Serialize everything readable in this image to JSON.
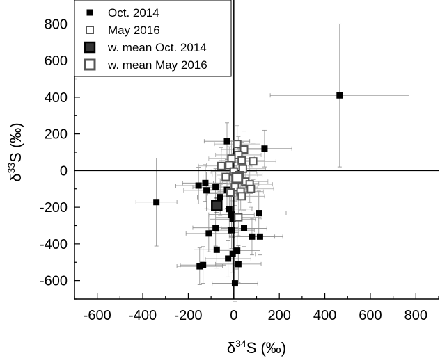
{
  "chart_data": {
    "type": "scatter",
    "title": "",
    "xlabel_main": "δ",
    "xlabel_sup": "34",
    "xlabel_rest": "S (‰)",
    "ylabel_main": "δ",
    "ylabel_sup": "33",
    "ylabel_rest": "S (‰)",
    "xlim": [
      -700,
      900
    ],
    "ylim": [
      -700,
      900
    ],
    "xticks": [
      -600,
      -400,
      -200,
      0,
      200,
      400,
      600,
      800
    ],
    "yticks": [
      -600,
      -400,
      -200,
      0,
      200,
      400,
      600,
      800
    ],
    "grid": false,
    "legend_position": "top-left",
    "legend": [
      {
        "label": "Oct. 2014",
        "style": "small-filled"
      },
      {
        "label": "May 2016",
        "style": "small-open"
      },
      {
        "label": "w. mean Oct. 2014",
        "style": "large-filled"
      },
      {
        "label": "w. mean May 2016",
        "style": "large-open"
      }
    ],
    "series": [
      {
        "name": "Oct. 2014",
        "points": [
          {
            "x": 465,
            "y": 410,
            "xerr": 305,
            "yerr": 390
          },
          {
            "x": 135,
            "y": 120,
            "xerr": 120,
            "yerr": 100
          },
          {
            "x": -340,
            "y": -172,
            "xerr": 90,
            "yerr": 240
          },
          {
            "x": -30,
            "y": 160,
            "xerr": 100,
            "yerr": 100
          },
          {
            "x": 110,
            "y": -232,
            "xerr": 120,
            "yerr": 120
          },
          {
            "x": -155,
            "y": -82,
            "xerr": 100,
            "yerr": 100
          },
          {
            "x": -125,
            "y": -68,
            "xerr": 100,
            "yerr": 100
          },
          {
            "x": -120,
            "y": -108,
            "xerr": 100,
            "yerr": 100
          },
          {
            "x": -80,
            "y": -90,
            "xerr": 100,
            "yerr": 100
          },
          {
            "x": -60,
            "y": -145,
            "xerr": 100,
            "yerr": 100
          },
          {
            "x": -30,
            "y": -105,
            "xerr": 100,
            "yerr": 100
          },
          {
            "x": -15,
            "y": -125,
            "xerr": 100,
            "yerr": 100
          },
          {
            "x": 5,
            "y": -20,
            "xerr": 100,
            "yerr": 100
          },
          {
            "x": 10,
            "y": -70,
            "xerr": 100,
            "yerr": 100
          },
          {
            "x": -20,
            "y": -210,
            "xerr": 100,
            "yerr": 100
          },
          {
            "x": -10,
            "y": -240,
            "xerr": 100,
            "yerr": 100
          },
          {
            "x": -5,
            "y": -265,
            "xerr": 100,
            "yerr": 100
          },
          {
            "x": -80,
            "y": -312,
            "xerr": 100,
            "yerr": 100
          },
          {
            "x": -10,
            "y": -325,
            "xerr": 100,
            "yerr": 100
          },
          {
            "x": 45,
            "y": -315,
            "xerr": 100,
            "yerr": 100
          },
          {
            "x": -110,
            "y": -343,
            "xerr": 100,
            "yerr": 100
          },
          {
            "x": 80,
            "y": -360,
            "xerr": 100,
            "yerr": 100
          },
          {
            "x": 115,
            "y": -360,
            "xerr": 100,
            "yerr": 100
          },
          {
            "x": -75,
            "y": -432,
            "xerr": 100,
            "yerr": 100
          },
          {
            "x": 15,
            "y": -437,
            "xerr": 100,
            "yerr": 100
          },
          {
            "x": -5,
            "y": -455,
            "xerr": 100,
            "yerr": 100
          },
          {
            "x": -25,
            "y": -480,
            "xerr": 100,
            "yerr": 100
          },
          {
            "x": 20,
            "y": -510,
            "xerr": 100,
            "yerr": 100
          },
          {
            "x": -135,
            "y": -515,
            "xerr": 100,
            "yerr": 100
          },
          {
            "x": -150,
            "y": -522,
            "xerr": 100,
            "yerr": 100
          },
          {
            "x": 5,
            "y": -615,
            "xerr": 100,
            "yerr": 100
          }
        ]
      },
      {
        "name": "May 2016",
        "points": [
          {
            "x": 15,
            "y": 145,
            "xerr": 100,
            "yerr": 100
          },
          {
            "x": 45,
            "y": 115,
            "xerr": 100,
            "yerr": 100
          },
          {
            "x": 20,
            "y": 85,
            "xerr": 100,
            "yerr": 100
          },
          {
            "x": -10,
            "y": 65,
            "xerr": 100,
            "yerr": 100
          },
          {
            "x": 35,
            "y": 55,
            "xerr": 100,
            "yerr": 100
          },
          {
            "x": 85,
            "y": 50,
            "xerr": 100,
            "yerr": 100
          },
          {
            "x": -20,
            "y": 30,
            "xerr": 100,
            "yerr": 100
          },
          {
            "x": -55,
            "y": 25,
            "xerr": 100,
            "yerr": 100
          },
          {
            "x": 40,
            "y": 10,
            "xerr": 100,
            "yerr": 100
          },
          {
            "x": 0,
            "y": -5,
            "xerr": 100,
            "yerr": 100
          },
          {
            "x": 25,
            "y": -25,
            "xerr": 100,
            "yerr": 100
          },
          {
            "x": -35,
            "y": -35,
            "xerr": 100,
            "yerr": 100
          },
          {
            "x": 50,
            "y": -60,
            "xerr": 100,
            "yerr": 100
          },
          {
            "x": 70,
            "y": -75,
            "xerr": 100,
            "yerr": 100
          },
          {
            "x": 5,
            "y": -90,
            "xerr": 100,
            "yerr": 100
          },
          {
            "x": 75,
            "y": -100,
            "xerr": 100,
            "yerr": 100
          },
          {
            "x": 30,
            "y": -115,
            "xerr": 100,
            "yerr": 100
          },
          {
            "x": -15,
            "y": -120,
            "xerr": 100,
            "yerr": 100
          },
          {
            "x": 35,
            "y": -140,
            "xerr": 100,
            "yerr": 100
          },
          {
            "x": 20,
            "y": -255,
            "xerr": 100,
            "yerr": 100
          }
        ]
      },
      {
        "name": "w. mean Oct. 2014",
        "points": [
          {
            "x": -75,
            "y": -190,
            "xerr": 20,
            "yerr": 40
          }
        ]
      },
      {
        "name": "w. mean May 2016",
        "points": [
          {
            "x": 15,
            "y": -40,
            "xerr": 20,
            "yerr": 30
          }
        ]
      }
    ]
  }
}
